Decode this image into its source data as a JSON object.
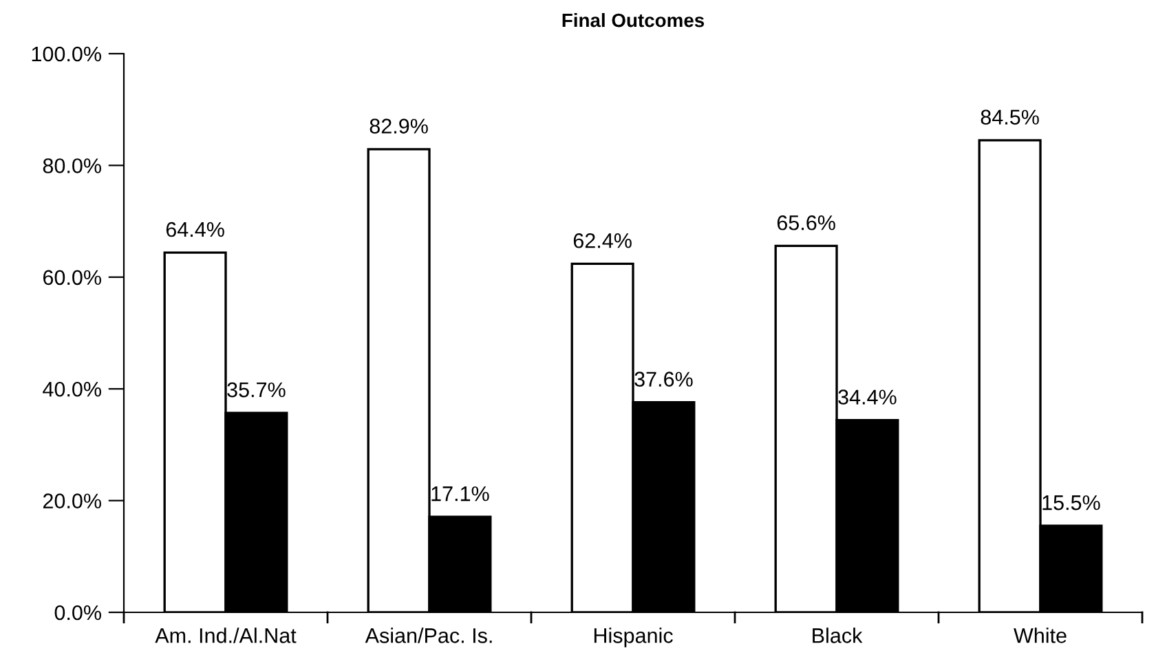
{
  "chart_data": {
    "type": "bar",
    "title": "Final Outcomes",
    "categories": [
      "Am. Ind./Al.Nat",
      "Asian/Pac. Is.",
      "Hispanic",
      "Black",
      "White"
    ],
    "series": [
      {
        "color": "#ffffff",
        "values": [
          64.4,
          82.9,
          62.4,
          65.6,
          84.5
        ],
        "value_labels": [
          "64.4%",
          "82.9%",
          "62.4%",
          "65.6%",
          "84.5%"
        ]
      },
      {
        "color": "#000000",
        "values": [
          35.7,
          17.1,
          37.6,
          34.4,
          15.5
        ],
        "value_labels": [
          "35.7%",
          "17.1%",
          "37.6%",
          "34.4%",
          "15.5%"
        ]
      }
    ],
    "ylim": [
      0,
      100
    ],
    "yticks": [
      {
        "value": 0,
        "label": "0.0%"
      },
      {
        "value": 20,
        "label": "20.0%"
      },
      {
        "value": 40,
        "label": "40.0%"
      },
      {
        "value": 60,
        "label": "60.0%"
      },
      {
        "value": 80,
        "label": "80.0%"
      },
      {
        "value": 100,
        "label": "100.0%"
      }
    ],
    "grid": false,
    "legend": false
  }
}
